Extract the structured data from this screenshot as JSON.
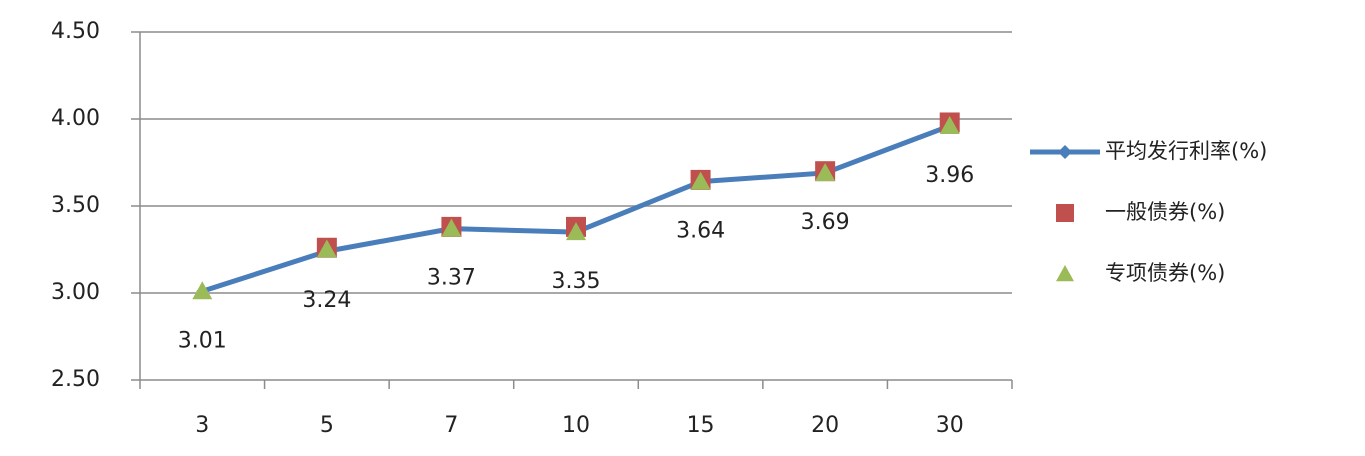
{
  "chart_data": {
    "type": "line",
    "categories": [
      "3",
      "5",
      "7",
      "10",
      "15",
      "20",
      "30"
    ],
    "series": [
      {
        "name": "平均发行利率(%)",
        "color": "#4a7ebb",
        "marker": "diamond",
        "values": [
          3.01,
          3.24,
          3.37,
          3.35,
          3.64,
          3.69,
          3.96
        ],
        "data_labels": true
      },
      {
        "name": "一般债券(%)",
        "color": "#c0504d",
        "marker": "square",
        "values": [
          null,
          3.26,
          3.38,
          3.38,
          3.65,
          3.7,
          3.98
        ]
      },
      {
        "name": "专项债券(%)",
        "color": "#9bbb59",
        "marker": "triangle",
        "values": [
          3.01,
          3.25,
          3.37,
          3.35,
          3.64,
          3.69,
          3.96
        ]
      }
    ],
    "ylim": [
      2.5,
      4.5
    ],
    "yticks": [
      {
        "value": 2.5,
        "label": "2.50"
      },
      {
        "value": 3,
        "label": "3.00"
      },
      {
        "value": 3.5,
        "label": "3.50"
      },
      {
        "value": 4,
        "label": "4.00"
      },
      {
        "value": 4.5,
        "label": "4.50"
      }
    ],
    "grid": true,
    "legend": "right"
  }
}
